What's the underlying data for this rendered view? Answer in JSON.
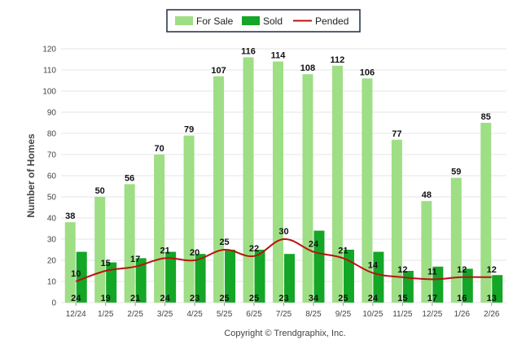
{
  "chart_data": {
    "type": "bar",
    "title": "",
    "xlabel": "",
    "ylabel": "Number of Homes",
    "ylim": [
      0,
      120
    ],
    "yticks": [
      0,
      10,
      20,
      30,
      40,
      50,
      60,
      70,
      80,
      90,
      100,
      110,
      120
    ],
    "grid": true,
    "legend_position": "top-center",
    "categories": [
      "12/24",
      "1/25",
      "2/25",
      "3/25",
      "4/25",
      "5/25",
      "6/25",
      "7/25",
      "8/25",
      "9/25",
      "10/25",
      "11/25",
      "12/25",
      "1/26",
      "2/26"
    ],
    "series": [
      {
        "name": "For Sale",
        "kind": "bar",
        "color": "#9ede85",
        "values": [
          38,
          50,
          56,
          70,
          79,
          107,
          116,
          114,
          108,
          112,
          106,
          77,
          48,
          59,
          85
        ]
      },
      {
        "name": "Sold",
        "kind": "bar",
        "color": "#14a626",
        "values": [
          24,
          19,
          21,
          24,
          23,
          25,
          25,
          23,
          34,
          25,
          24,
          15,
          17,
          16,
          13
        ]
      },
      {
        "name": "Pended",
        "kind": "line",
        "color": "#bb1111",
        "values": [
          10,
          15,
          17,
          21,
          20,
          25,
          22,
          30,
          24,
          21,
          14,
          12,
          11,
          12,
          12
        ]
      }
    ]
  },
  "legend": {
    "for_sale": "For Sale",
    "sold": "Sold",
    "pended": "Pended"
  },
  "footer": {
    "copyright": "Copyright © Trendgraphix, Inc."
  }
}
